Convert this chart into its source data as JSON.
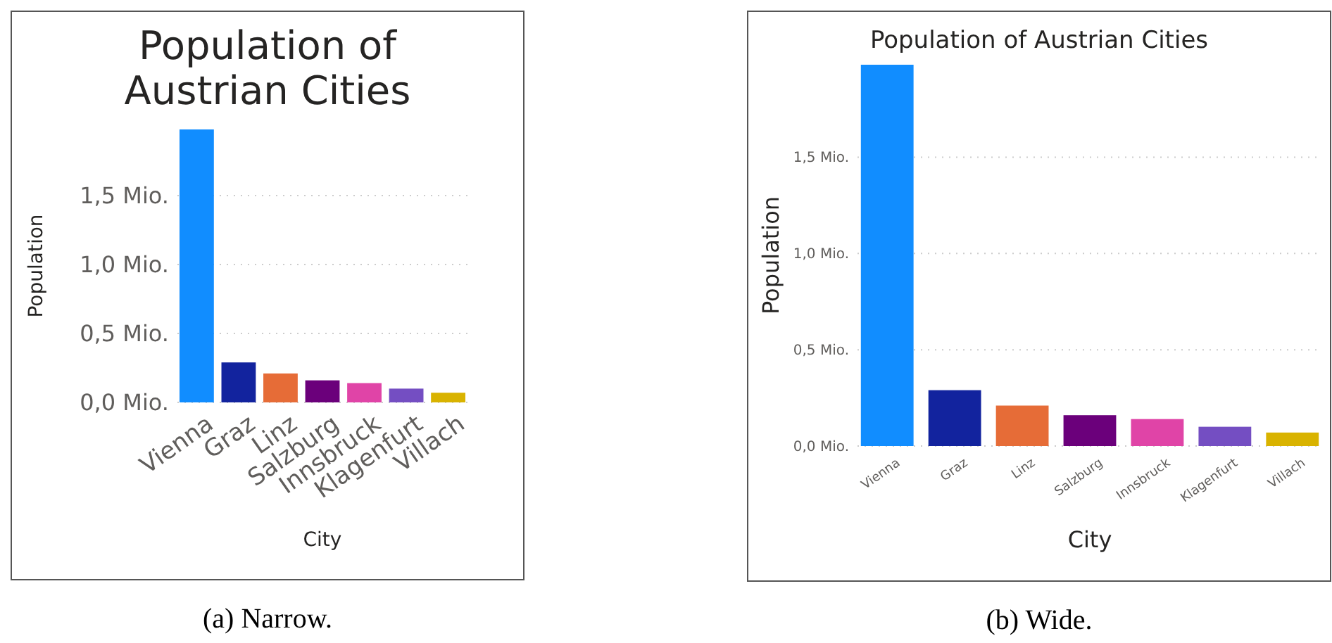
{
  "chart_data": [
    {
      "type": "bar",
      "title": "Population of Austrian Cities",
      "xlabel": "City",
      "ylabel": "Population",
      "categories": [
        "Vienna",
        "Graz",
        "Linz",
        "Salzburg",
        "Innsbruck",
        "Klagenfurt",
        "Villach"
      ],
      "values": [
        1.98,
        0.29,
        0.21,
        0.16,
        0.14,
        0.1,
        0.07
      ],
      "colors": [
        "#118dff",
        "#12239e",
        "#e66c37",
        "#6b007b",
        "#e044a7",
        "#744ec2",
        "#d9b300"
      ],
      "ylim": [
        0,
        1.98
      ],
      "yticks": [
        {
          "value": 0,
          "label": "0,0 Mio."
        },
        {
          "value": 0.5,
          "label": "0,5 Mio."
        },
        {
          "value": 1,
          "label": "1,0 Mio."
        },
        {
          "value": 1.5,
          "label": "1,5 Mio."
        }
      ],
      "grid": "y",
      "annotations": [
        "(a) Narrow."
      ]
    },
    {
      "type": "bar",
      "title": "Population of Austrian Cities",
      "xlabel": "City",
      "ylabel": "Population",
      "categories": [
        "Vienna",
        "Graz",
        "Linz",
        "Salzburg",
        "Innsbruck",
        "Klagenfurt",
        "Villach"
      ],
      "values": [
        1.98,
        0.29,
        0.21,
        0.16,
        0.14,
        0.1,
        0.07
      ],
      "colors": [
        "#118dff",
        "#12239e",
        "#e66c37",
        "#6b007b",
        "#e044a7",
        "#744ec2",
        "#d9b300"
      ],
      "ylim": [
        0,
        1.98
      ],
      "yticks": [
        {
          "value": 0,
          "label": "0,0 Mio."
        },
        {
          "value": 0.5,
          "label": "0,5 Mio."
        },
        {
          "value": 1,
          "label": "1,0 Mio."
        },
        {
          "value": 1.5,
          "label": "1,5 Mio."
        }
      ],
      "grid": "y",
      "annotations": [
        "(b) Wide."
      ]
    }
  ]
}
